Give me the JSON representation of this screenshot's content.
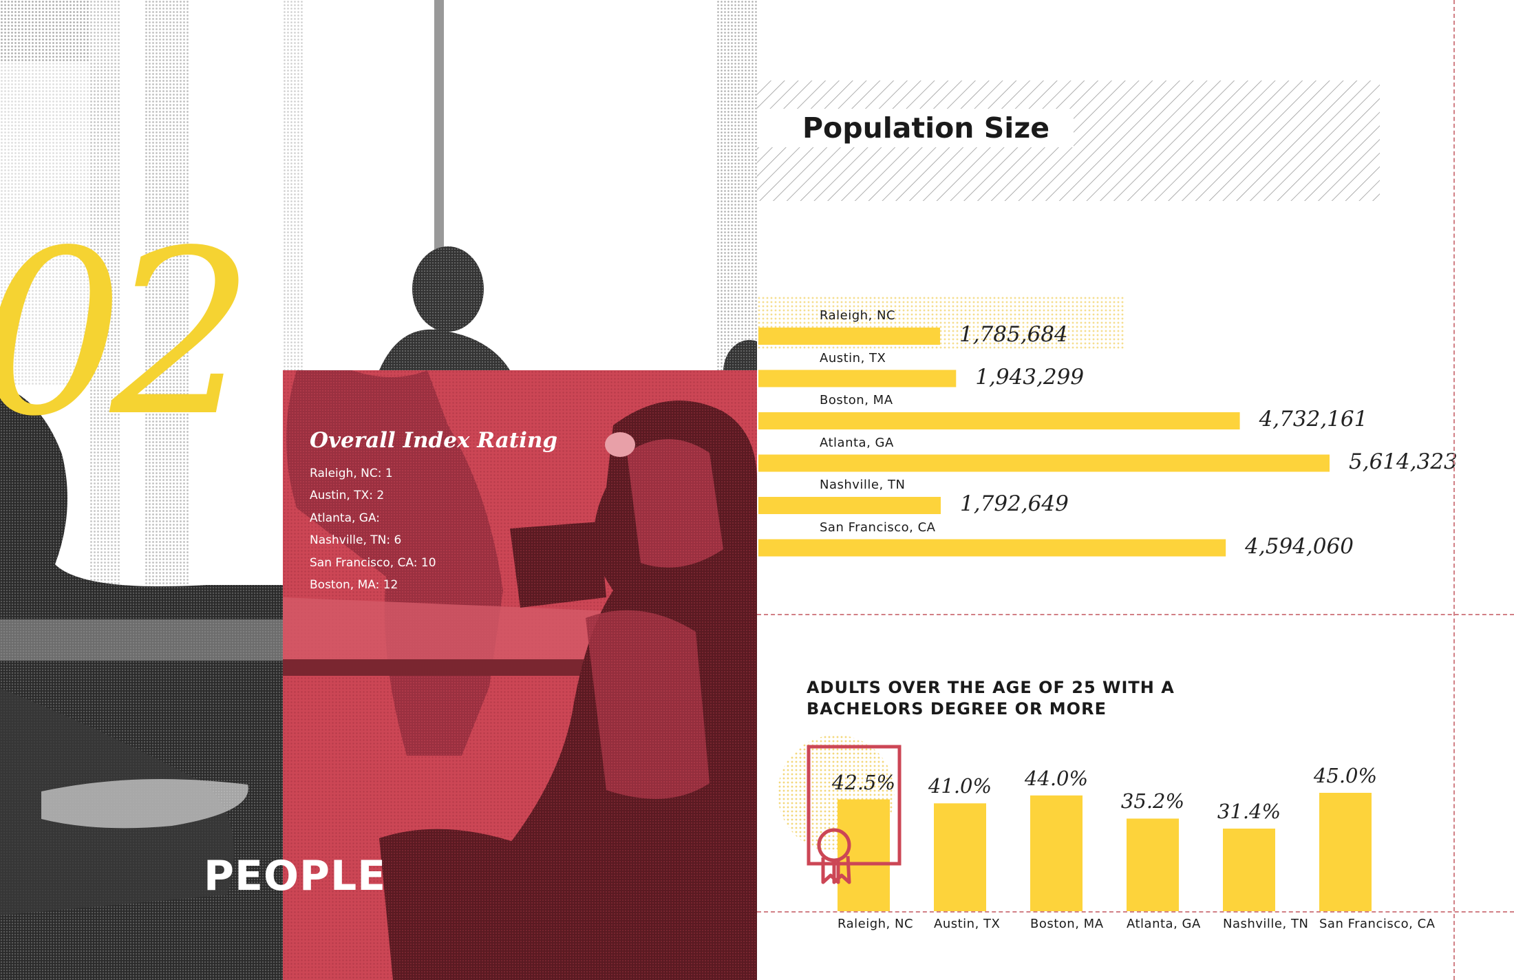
{
  "section": {
    "number": "02",
    "title": "PEOPLE"
  },
  "index_rating": {
    "title": "Overall Index Rating",
    "items": [
      "Raleigh, NC: 1",
      "Austin, TX: 2",
      "Atlanta, GA:",
      "Nashville, TN: 6",
      "San Francisco, CA: 10",
      "Boston, MA: 12"
    ]
  },
  "colors": {
    "accent_yellow": "#fdd33b",
    "accent_red": "#cc4655",
    "dash_red": "#d17f85"
  },
  "icons": [
    "award-ribbon-icon"
  ],
  "chart_data": [
    {
      "type": "bar",
      "orientation": "horizontal",
      "title": "Population Size",
      "categories": [
        "Raleigh, NC",
        "Austin, TX",
        "Boston, MA",
        "Atlanta, GA",
        "Nashville, TN",
        "San Francisco, CA"
      ],
      "values": [
        1785684,
        1943299,
        4732161,
        5614323,
        1792649,
        4594060
      ],
      "value_labels": [
        "1,785,684",
        "1,943,299",
        "4,732,161",
        "5,614,323",
        "1,792,649",
        "4,594,060"
      ],
      "highlight": "Raleigh, NC",
      "grid": false,
      "legend": "none"
    },
    {
      "type": "bar",
      "orientation": "vertical",
      "title": "ADULTS OVER THE AGE OF 25 WITH A BACHELORS DEGREE OR MORE",
      "categories": [
        "Raleigh, NC",
        "Austin, TX",
        "Boston, MA",
        "Atlanta, GA",
        "Nashville, TN",
        "San Francisco, CA"
      ],
      "values": [
        42.5,
        41.0,
        44.0,
        35.2,
        31.4,
        45.0
      ],
      "value_labels": [
        "42.5%",
        "41.0%",
        "44.0%",
        "35.2%",
        "31.4%",
        "45.0%"
      ],
      "highlight": "Raleigh, NC",
      "grid": false,
      "legend": "none"
    }
  ]
}
